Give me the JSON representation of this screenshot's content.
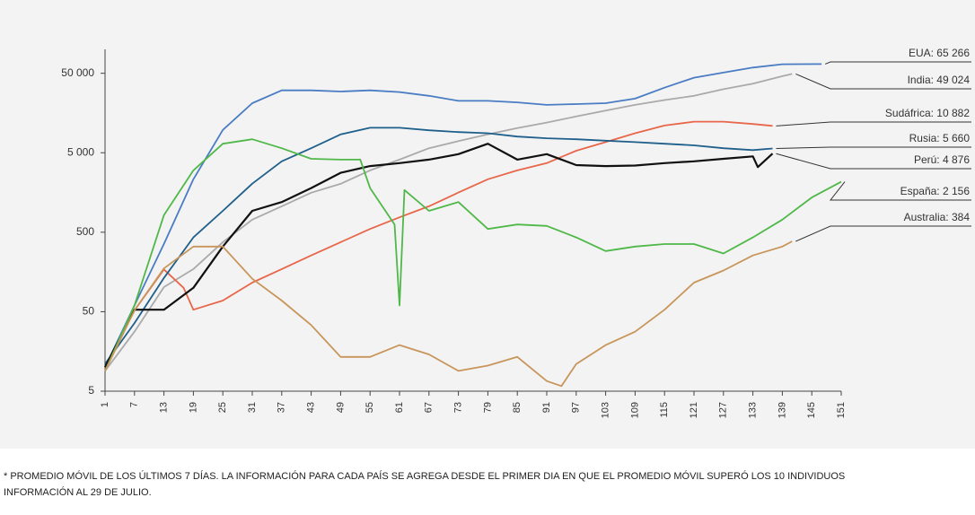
{
  "chart_data": {
    "type": "line",
    "xticks": [
      1,
      7,
      13,
      19,
      25,
      31,
      37,
      43,
      49,
      55,
      61,
      67,
      73,
      79,
      85,
      91,
      97,
      103,
      109,
      115,
      121,
      127,
      133,
      139,
      145,
      151
    ],
    "xlim": [
      1,
      151
    ],
    "ylim": [
      5,
      100000
    ],
    "log_y": true,
    "yticks": [
      5,
      50,
      500,
      {
        "value": 5000,
        "label": "5 000"
      },
      {
        "value": 50000,
        "label": "50 000"
      }
    ],
    "series": [
      {
        "name": "EUA: 65 266",
        "color": "#4a7cc4",
        "x": [
          1,
          7,
          13,
          19,
          25,
          31,
          37,
          43,
          49,
          55,
          61,
          67,
          73,
          79,
          85,
          91,
          97,
          103,
          109,
          115,
          121,
          127,
          133,
          139,
          147
        ],
        "values": [
          10,
          60,
          356,
          2320,
          9700,
          21000,
          30500,
          30500,
          29500,
          30500,
          29000,
          26000,
          22500,
          22500,
          21500,
          20000,
          20500,
          21000,
          24000,
          33000,
          44000,
          51000,
          59000,
          65000,
          65266
        ]
      },
      {
        "name": "India: 49 024",
        "color": "#aaaaaa",
        "x": [
          1,
          7,
          13,
          19,
          25,
          31,
          37,
          43,
          49,
          55,
          61,
          67,
          73,
          79,
          85,
          91,
          97,
          103,
          109,
          115,
          121,
          127,
          133,
          139,
          141
        ],
        "values": [
          9,
          28,
          102,
          172,
          375,
          720,
          1060,
          1570,
          2030,
          3000,
          4100,
          5700,
          7000,
          8500,
          10200,
          12000,
          14300,
          17000,
          20000,
          23000,
          26000,
          31500,
          37000,
          46000,
          49024
        ]
      },
      {
        "name": "Sudáfrica: 10 882",
        "color": "#e8664a",
        "x": [
          1,
          7,
          13,
          17,
          19,
          25,
          31,
          37,
          43,
          49,
          55,
          61,
          67,
          73,
          79,
          85,
          91,
          97,
          103,
          109,
          115,
          121,
          127,
          133,
          137
        ],
        "values": [
          10,
          52,
          170,
          100,
          53,
          69,
          116,
          172,
          255,
          375,
          550,
          770,
          1060,
          1580,
          2320,
          3000,
          3700,
          5300,
          6800,
          8800,
          11000,
          12300,
          12300,
          11500,
          10882
        ]
      },
      {
        "name": "Rusia: 5 660",
        "color": "#1f5f8b",
        "x": [
          1,
          7,
          13,
          19,
          25,
          31,
          37,
          43,
          49,
          55,
          61,
          67,
          73,
          79,
          85,
          91,
          97,
          103,
          109,
          115,
          121,
          127,
          133,
          137
        ],
        "values": [
          11,
          36,
          133,
          430,
          930,
          2040,
          3900,
          5700,
          8500,
          10300,
          10300,
          9600,
          9100,
          8800,
          8000,
          7600,
          7400,
          7100,
          6800,
          6500,
          6200,
          5700,
          5400,
          5660
        ]
      },
      {
        "name": "Perú: 4 876",
        "color": "#111111",
        "x": [
          1,
          7,
          13,
          19,
          25,
          31,
          37,
          43,
          49,
          55,
          61,
          67,
          73,
          79,
          85,
          91,
          97,
          103,
          109,
          115,
          121,
          127,
          133,
          134,
          137
        ],
        "values": [
          10,
          53,
          53,
          100,
          330,
          930,
          1200,
          1800,
          2800,
          3400,
          3700,
          4100,
          4800,
          6500,
          4100,
          4800,
          3500,
          3400,
          3450,
          3700,
          3900,
          4200,
          4500,
          3300,
          4876
        ]
      },
      {
        "name": "España: 2 156",
        "color": "#4fb848",
        "x": [
          1,
          7,
          13,
          19,
          25,
          31,
          37,
          43,
          49,
          53,
          55,
          60,
          61,
          62,
          67,
          73,
          79,
          85,
          91,
          97,
          103,
          109,
          115,
          121,
          127,
          133,
          139,
          145,
          151
        ],
        "values": [
          9,
          60,
          820,
          3000,
          6500,
          7400,
          5700,
          4200,
          4100,
          4100,
          1800,
          625,
          60,
          1700,
          930,
          1200,
          550,
          625,
          600,
          430,
          290,
          330,
          355,
          355,
          270,
          430,
          720,
          1370,
          2156
        ]
      },
      {
        "name": "Australia: 384",
        "color": "#c8955a",
        "x": [
          1,
          7,
          13,
          19,
          25,
          31,
          37,
          43,
          49,
          55,
          61,
          67,
          73,
          79,
          85,
          91,
          94,
          97,
          103,
          109,
          115,
          121,
          127,
          133,
          139,
          141
        ],
        "values": [
          9,
          52,
          175,
          330,
          330,
          130,
          69,
          34,
          13.5,
          13.5,
          19,
          14.5,
          9,
          10.5,
          13.5,
          6.7,
          5.8,
          11,
          19,
          28,
          53,
          116,
          165,
          255,
          330,
          384
        ]
      }
    ],
    "footnote": [
      "* PROMEDIO MÓVIL DE LOS ÚLTIMOS 7 DÍAS. LA INFORMACIÓN PARA CADA PAÍS SE AGREGA DESDE EL PRIMER DIA EN QUE EL PROMEDIO MÓVIL SUPERÓ LOS 10 INDIVIDUOS",
      "INFORMACIÓN AL 29 DE JULIO."
    ]
  }
}
